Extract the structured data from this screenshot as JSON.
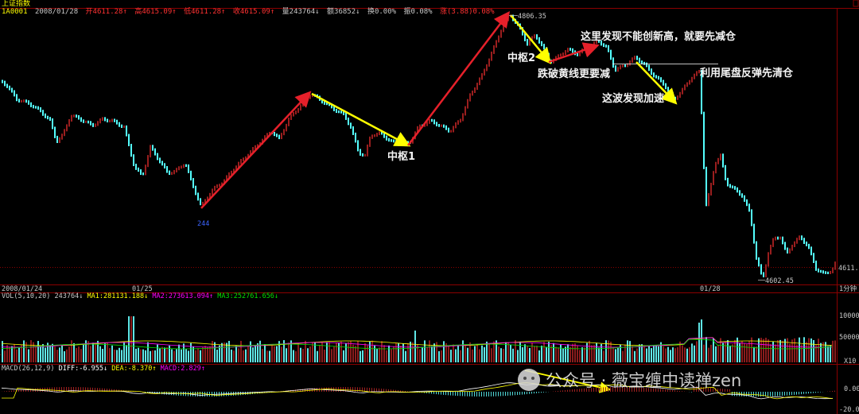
{
  "header": {
    "title": "上证指数",
    "code": "1A0001",
    "date": "2008/01/28",
    "open": "开4611.28↑",
    "high": "高4615.09↑",
    "low": "低4611.28↑",
    "close": "收4615.09↑",
    "volume": "量243764↓",
    "amount": "额36852↓",
    "turnover": "换0.00%",
    "amplitude": "振0.08%",
    "change": "涨(3.88)0.08%"
  },
  "price_axis": {
    "last_price": "4611.2",
    "high_marker": "4806.35",
    "low_marker": "4602.45",
    "left_low_marker": "244"
  },
  "time_axis": {
    "start": "2008/01/24",
    "mid": "01/25",
    "end": "01/28",
    "period": "1分钟"
  },
  "volume_panel": {
    "label": "VOL(5,10,20)",
    "vol": "243764↓",
    "ma1": "MA1:281131.188↓",
    "ma2": "MA2:273613.094↑",
    "ma3": "MA3:252761.656↓",
    "scale_high": "100000",
    "scale_mid": "50000",
    "scale_unit": "X10"
  },
  "macd_panel": {
    "label": "MACD(26,12,9)",
    "diff": "DIFF:-6.955↓",
    "dea": "DEA:-8.370↑",
    "macd": "MACD:2.829↑",
    "scale_zero": "0.00",
    "scale_neg": "-20.00"
  },
  "annotations": {
    "center1": "中枢1",
    "center2": "中枢2",
    "no_new_high": "这里发现不能创新高，就要先减仓",
    "break_yellow": "跌破黄线更要减",
    "accelerate": "这波发现加速",
    "close_out": "利用尾盘反弹先清仓"
  },
  "watermark": "公众号 · 薇宝缠中读禅zen",
  "colors": {
    "up": "#ff3232",
    "down": "#54ffff",
    "red_arrow": "#e6202a",
    "yellow_arrow": "#ffff00",
    "grid": "#8b0000",
    "white_line": "#ffffff",
    "ma_yellow": "#ffff00",
    "ma_magenta": "#ff00ff",
    "ma_green": "#00e000"
  }
}
